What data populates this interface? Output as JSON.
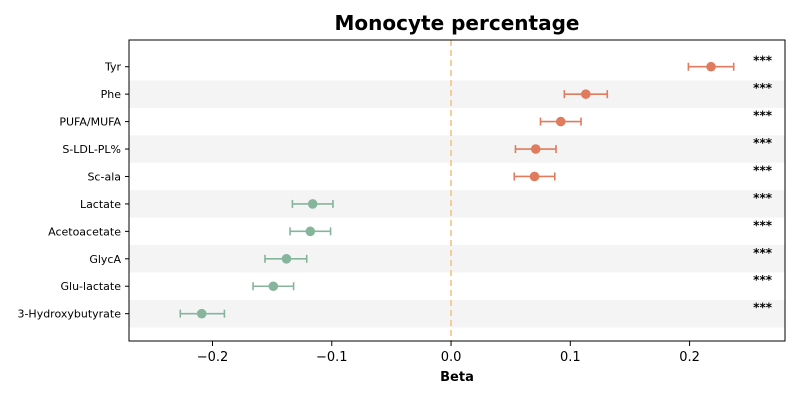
{
  "chart_data": {
    "type": "scatter",
    "title": "Monocyte percentage",
    "xlabel": "Beta",
    "ylabel": "",
    "xlim": [
      -0.27,
      0.28
    ],
    "xticks": [
      -0.2,
      -0.1,
      0.0,
      0.1,
      0.2
    ],
    "xtick_labels": [
      "−0.2",
      "−0.1",
      "0.0",
      "0.1",
      "0.2"
    ],
    "reference_line": 0.0,
    "grid": false,
    "colors": {
      "positive": "#e07b5e",
      "negative": "#86b59c",
      "reference": "#f7c27d",
      "band": "#f4f4f4"
    },
    "points": [
      {
        "label": "Tyr",
        "beta": 0.218,
        "lower": 0.199,
        "upper": 0.237,
        "significance": "***"
      },
      {
        "label": "Phe",
        "beta": 0.113,
        "lower": 0.095,
        "upper": 0.131,
        "significance": "***"
      },
      {
        "label": "PUFA/MUFA",
        "beta": 0.092,
        "lower": 0.075,
        "upper": 0.109,
        "significance": "***"
      },
      {
        "label": "S-LDL-PL%",
        "beta": 0.071,
        "lower": 0.054,
        "upper": 0.088,
        "significance": "***"
      },
      {
        "label": "Sc-ala",
        "beta": 0.07,
        "lower": 0.053,
        "upper": 0.087,
        "significance": "***"
      },
      {
        "label": "Lactate",
        "beta": -0.116,
        "lower": -0.133,
        "upper": -0.099,
        "significance": "***"
      },
      {
        "label": "Acetoacetate",
        "beta": -0.118,
        "lower": -0.135,
        "upper": -0.101,
        "significance": "***"
      },
      {
        "label": "GlycA",
        "beta": -0.138,
        "lower": -0.156,
        "upper": -0.121,
        "significance": "***"
      },
      {
        "label": "Glu-lactate",
        "beta": -0.149,
        "lower": -0.166,
        "upper": -0.132,
        "significance": "***"
      },
      {
        "label": "3-Hydroxybutyrate",
        "beta": -0.209,
        "lower": -0.227,
        "upper": -0.19,
        "significance": "***"
      }
    ]
  }
}
